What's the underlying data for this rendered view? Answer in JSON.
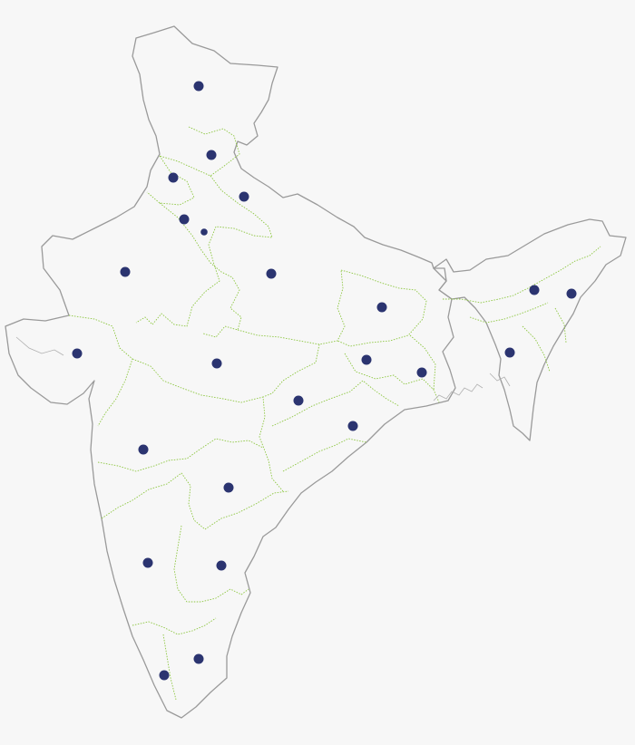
{
  "map": {
    "colors": {
      "background": "#f7f7f7",
      "land": "#ffffff",
      "outline": "#9a9a9a",
      "state_border": "#8cc63f",
      "marker": "#2b3470"
    }
  },
  "markers": [
    {
      "size": "regular"
    },
    {
      "size": "regular"
    },
    {
      "size": "regular"
    },
    {
      "size": "regular"
    },
    {
      "size": "regular"
    },
    {
      "size": "small"
    },
    {
      "size": "regular"
    },
    {
      "size": "regular"
    },
    {
      "size": "regular"
    },
    {
      "size": "regular"
    },
    {
      "size": "regular"
    },
    {
      "size": "regular"
    },
    {
      "size": "regular"
    },
    {
      "size": "regular"
    },
    {
      "size": "regular"
    },
    {
      "size": "regular"
    },
    {
      "size": "regular"
    },
    {
      "size": "regular"
    },
    {
      "size": "regular"
    },
    {
      "size": "regular"
    },
    {
      "size": "regular"
    },
    {
      "size": "regular"
    },
    {
      "size": "regular"
    },
    {
      "size": "regular"
    },
    {
      "size": "regular"
    },
    {
      "size": "regular"
    }
  ]
}
